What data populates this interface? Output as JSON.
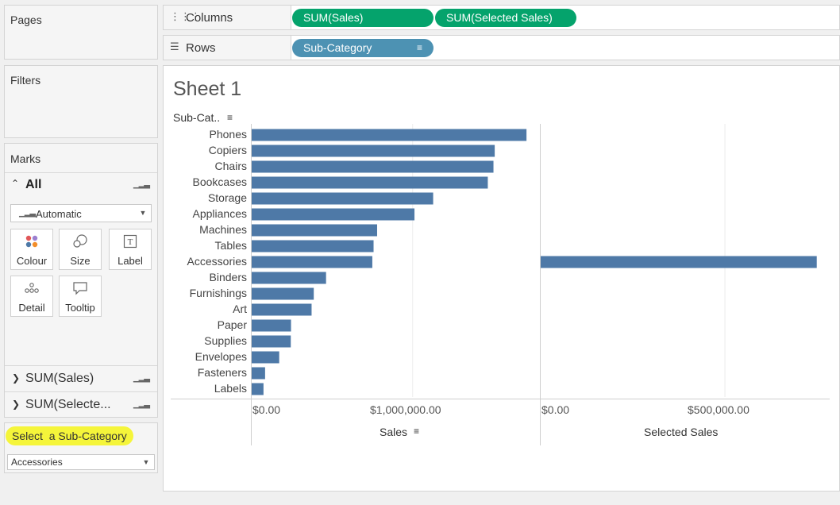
{
  "left_panel": {
    "pages_title": "Pages",
    "filters_title": "Filters",
    "marks": {
      "title": "Marks",
      "all_label": "All",
      "mark_type": "Automatic",
      "buttons": [
        {
          "label": "Colour",
          "icon": "colour-icon"
        },
        {
          "label": "Size",
          "icon": "size-icon"
        },
        {
          "label": "Label",
          "icon": "label-icon"
        },
        {
          "label": "Detail",
          "icon": "detail-icon"
        },
        {
          "label": "Tooltip",
          "icon": "tooltip-icon"
        }
      ],
      "measure_cards": [
        "SUM(Sales)",
        "SUM(Selecte..."
      ]
    },
    "parameter": {
      "title": "Select  a Sub-Category",
      "highlight_color": "#f5f53a",
      "selected_value": "Accessories"
    }
  },
  "shelves": {
    "columns_label": "Columns",
    "rows_label": "Rows",
    "column_pills": [
      "SUM(Sales)",
      "SUM(Selected Sales)"
    ],
    "row_pills": [
      "Sub-Category"
    ]
  },
  "sheet": {
    "title": "Sheet 1",
    "row_header": "Sub-Cat..",
    "sales_axis_title": "Sales",
    "selected_axis_title": "Selected Sales",
    "sales_ticks": [
      "$0.00",
      "$1,000,000.00"
    ],
    "selected_ticks": [
      "$0.00",
      "$500,000.00"
    ]
  },
  "chart_data": {
    "type": "bar",
    "orientation": "horizontal",
    "bar_color": "#4e79a7",
    "categories": [
      "Phones",
      "Copiers",
      "Chairs",
      "Bookcases",
      "Storage",
      "Appliances",
      "Machines",
      "Tables",
      "Accessories",
      "Binders",
      "Furnishings",
      "Art",
      "Paper",
      "Supplies",
      "Envelopes",
      "Fasteners",
      "Labels"
    ],
    "series": [
      {
        "name": "Sales",
        "values": [
          1706824,
          1509436,
          1501682,
          1466572,
          1127086,
          1011064,
          779061,
          757042,
          749237,
          461911,
          385579,
          372092,
          244292,
          242811,
          170904,
          83242,
          73350
        ]
      },
      {
        "name": "Selected Sales",
        "values": [
          0,
          0,
          0,
          0,
          0,
          0,
          0,
          0,
          749237,
          0,
          0,
          0,
          0,
          0,
          0,
          0,
          0
        ]
      }
    ],
    "xlabel": [
      "Sales",
      "Selected Sales"
    ],
    "xlim": [
      [
        0,
        1790000
      ],
      [
        0,
        780000
      ]
    ],
    "grid": true
  }
}
